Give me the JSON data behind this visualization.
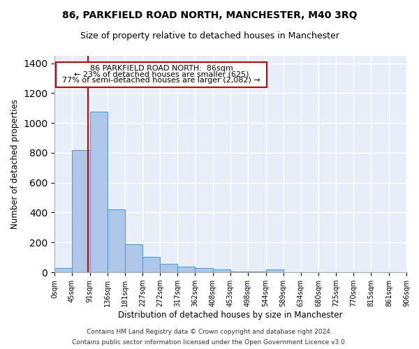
{
  "title": "86, PARKFIELD ROAD NORTH, MANCHESTER, M40 3RQ",
  "subtitle": "Size of property relative to detached houses in Manchester",
  "xlabel": "Distribution of detached houses by size in Manchester",
  "ylabel": "Number of detached properties",
  "bar_color": "#aec6e8",
  "bar_edge_color": "#5a9fd4",
  "background_color": "#e8eef8",
  "grid_color": "#ffffff",
  "bin_labels": [
    "0sqm",
    "45sqm",
    "91sqm",
    "136sqm",
    "181sqm",
    "227sqm",
    "272sqm",
    "317sqm",
    "362sqm",
    "408sqm",
    "453sqm",
    "498sqm",
    "544sqm",
    "589sqm",
    "634sqm",
    "680sqm",
    "725sqm",
    "770sqm",
    "815sqm",
    "861sqm",
    "906sqm"
  ],
  "bar_values": [
    28,
    820,
    1075,
    420,
    185,
    103,
    55,
    37,
    27,
    18,
    5,
    5,
    18,
    0,
    0,
    0,
    0,
    0,
    0,
    0
  ],
  "bin_edges": [
    0,
    45,
    91,
    136,
    181,
    227,
    272,
    317,
    362,
    408,
    453,
    498,
    544,
    589,
    634,
    680,
    725,
    770,
    815,
    861,
    906
  ],
  "property_size": 86,
  "property_line_color": "#cc0000",
  "annotation_text_line1": "86 PARKFIELD ROAD NORTH:  86sqm",
  "annotation_text_line2": "← 23% of detached houses are smaller (625)",
  "annotation_text_line3": "77% of semi-detached houses are larger (2,082) →",
  "annotation_box_color": "#cc0000",
  "ylim": [
    0,
    1450
  ],
  "footer_line1": "Contains HM Land Registry data © Crown copyright and database right 2024.",
  "footer_line2": "Contains public sector information licensed under the Open Government Licence v3.0."
}
